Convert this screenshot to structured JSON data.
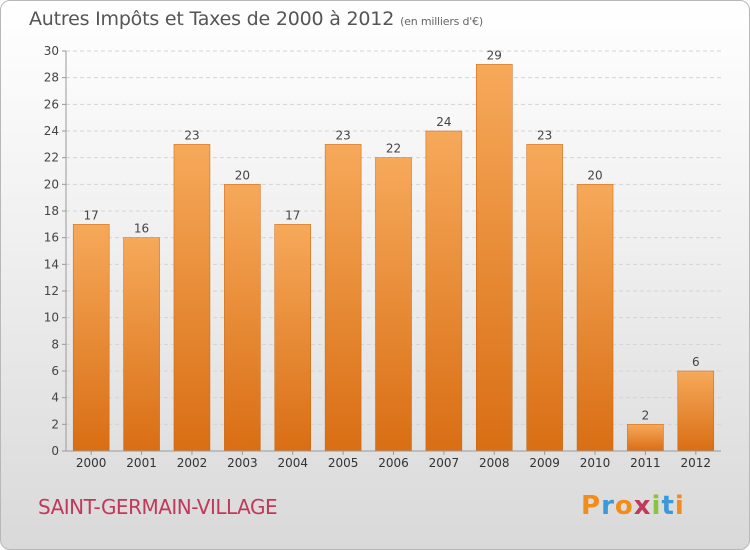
{
  "header": {
    "title": "Autres Impôts et Taxes de 2000 à 2012",
    "unit": "(en milliers d'€)"
  },
  "footer": {
    "town": "SAINT-GERMAIN-VILLAGE",
    "brand": "Proxiti"
  },
  "colors": {
    "bar_top": "#f6a95a",
    "bar_bottom": "#d96e14",
    "label": "#444444",
    "town": "#c0395a"
  },
  "chart_data": {
    "type": "bar",
    "title": "Autres Impôts et Taxes de 2000 à 2012",
    "subtitle": "(en milliers d'€)",
    "xlabel": "",
    "ylabel": "",
    "categories": [
      "2000",
      "2001",
      "2002",
      "2003",
      "2004",
      "2005",
      "2006",
      "2007",
      "2008",
      "2009",
      "2010",
      "2011",
      "2012"
    ],
    "values": [
      17,
      16,
      23,
      20,
      17,
      23,
      22,
      24,
      29,
      23,
      20,
      2,
      6
    ],
    "ylim": [
      0,
      30
    ],
    "yticks": [
      0,
      2,
      4,
      6,
      8,
      10,
      12,
      14,
      16,
      18,
      20,
      22,
      24,
      26,
      28,
      30
    ],
    "grid": true,
    "data_labels": true
  }
}
